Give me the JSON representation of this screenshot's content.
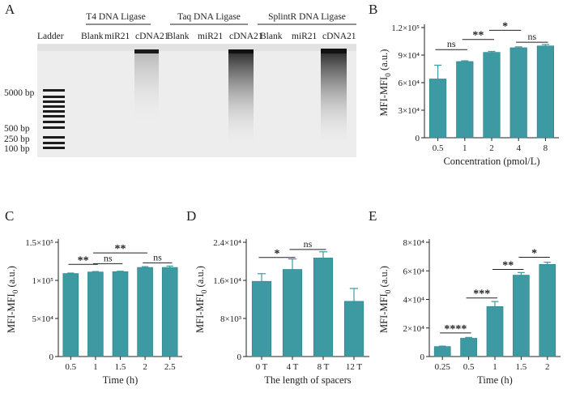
{
  "colors": {
    "bar": "#3d9aa2",
    "barEdge": "#2f7f87",
    "axis": "#222222",
    "gel_bg": "#efefef"
  },
  "panels": {
    "A": {
      "letter": "A",
      "enzymes": [
        "T4 DNA Ligase",
        "Taq DNA Ligase",
        "SplintR DNA Ligase"
      ],
      "ladder_label": "Ladder",
      "lane_labels": [
        "Blank",
        "miR21",
        "cDNA21",
        "Blank",
        "miR21",
        "cDNA21",
        "Blank",
        "miR21",
        "cDNA21"
      ],
      "marker_labels": [
        "5000 bp",
        "500 bp",
        "250 bp",
        "100 bp"
      ]
    }
  },
  "chart_data": [
    {
      "id": "B",
      "letter": "B",
      "type": "bar",
      "categories": [
        "0.5",
        "1",
        "2",
        "4",
        "8"
      ],
      "values": [
        64000,
        83000,
        93000,
        98000,
        100000
      ],
      "errors": [
        15000,
        800,
        1000,
        1000,
        1500
      ],
      "xlabel": "Concentration (pmol/L)",
      "ylabel_main": "MFI-MFI",
      "ylabel_sub": "0",
      "ylabel_unit": " (a.u.)",
      "ylim": [
        0,
        120000
      ],
      "ytick_labels": [
        "0",
        "3×10⁴",
        "6×10⁴",
        "9×10⁴",
        "1.2×10⁵"
      ],
      "yticks": [
        0,
        30000,
        60000,
        90000,
        120000
      ],
      "sig": [
        {
          "from": 0,
          "to": 1,
          "label": "ns",
          "y": 96000
        },
        {
          "from": 1,
          "to": 2,
          "label": "**",
          "y": 107000
        },
        {
          "from": 2,
          "to": 3,
          "label": "*",
          "y": 117000
        },
        {
          "from": 3,
          "to": 4,
          "label": "ns",
          "y": 104000
        }
      ]
    },
    {
      "id": "C",
      "letter": "C",
      "type": "bar",
      "categories": [
        "0.5",
        "1",
        "1.5",
        "2",
        "2.5"
      ],
      "values": [
        109000,
        111000,
        111500,
        117000,
        117000
      ],
      "errors": [
        600,
        600,
        500,
        1000,
        1800
      ],
      "xlabel": "Time (h)",
      "ylabel_main": "MFI-MFI",
      "ylabel_sub": "0",
      "ylabel_unit": " (a.u.)",
      "ylim": [
        0,
        150000
      ],
      "ytick_labels": [
        "0",
        "5×10⁴",
        "1×10⁵",
        "1.5×10⁵"
      ],
      "yticks": [
        0,
        50000,
        100000,
        150000
      ],
      "sig": [
        {
          "from": 0,
          "to": 1,
          "label": "**",
          "y": 121000
        },
        {
          "from": 1,
          "to": 2,
          "label": "ns",
          "y": 122000
        },
        {
          "from": 1,
          "to": 3,
          "label": "**",
          "y": 136000
        },
        {
          "from": 3,
          "to": 4,
          "label": "ns",
          "y": 123000
        }
      ]
    },
    {
      "id": "D",
      "letter": "D",
      "type": "bar",
      "categories": [
        "0 T",
        "4 T",
        "8 T",
        "12 T"
      ],
      "values": [
        15800,
        18300,
        20700,
        11600
      ],
      "errors": [
        1600,
        2200,
        1300,
        2700
      ],
      "xlabel": "The length of spacers",
      "ylabel_main": "MFI-MFI",
      "ylabel_sub": "0",
      "ylabel_unit": " (a.u.)",
      "ylim": [
        0,
        24000
      ],
      "ytick_labels": [
        "0",
        "8×10³",
        "1.6×10⁴",
        "2.4×10⁴"
      ],
      "yticks": [
        0,
        8000,
        16000,
        24000
      ],
      "sig": [
        {
          "from": 0,
          "to": 1,
          "label": "*",
          "y": 20800
        },
        {
          "from": 1,
          "to": 2,
          "label": "ns",
          "y": 22500
        }
      ]
    },
    {
      "id": "E",
      "letter": "E",
      "type": "bar",
      "categories": [
        "0.25",
        "0.5",
        "1",
        "1.5",
        "2"
      ],
      "values": [
        7000,
        12800,
        35000,
        57000,
        64500
      ],
      "errors": [
        300,
        600,
        3500,
        1800,
        1500
      ],
      "xlabel": "Time (h)",
      "ylabel_main": "MFI-MFI",
      "ylabel_sub": "0",
      "ylabel_unit": " (a.u.)",
      "ylim": [
        0,
        80000
      ],
      "ytick_labels": [
        "0",
        "2×10⁴",
        "4×10⁴",
        "6×10⁴",
        "8×10⁴"
      ],
      "yticks": [
        0,
        20000,
        40000,
        60000,
        80000
      ],
      "sig": [
        {
          "from": 0,
          "to": 1,
          "label": "****",
          "y": 16500
        },
        {
          "from": 1,
          "to": 2,
          "label": "***",
          "y": 41000
        },
        {
          "from": 2,
          "to": 3,
          "label": "**",
          "y": 61000
        },
        {
          "from": 3,
          "to": 4,
          "label": "*",
          "y": 69500
        }
      ]
    }
  ]
}
